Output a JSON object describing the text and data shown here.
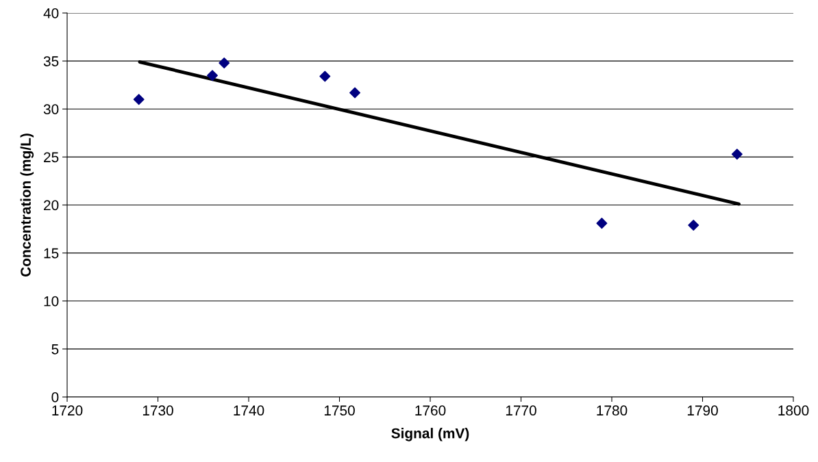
{
  "chart_data": {
    "type": "scatter",
    "xlabel": "Signal (mV)",
    "ylabel": "Concentration (mg/L)",
    "series": [
      {
        "color": "#000080",
        "marker": "diamond",
        "x": [
          1727.9,
          1736.0,
          1737.3,
          1748.4,
          1751.7,
          1778.9,
          1789.0,
          1793.8
        ],
        "values": [
          31.0,
          33.5,
          34.8,
          33.4,
          31.7,
          18.1,
          17.9,
          25.3
        ]
      },
      {
        "type": "line",
        "color": "#000000",
        "x": [
          1728,
          1794
        ],
        "values": [
          34.9,
          20.1
        ]
      }
    ],
    "xlim": [
      1720,
      1800
    ],
    "xticks": [
      1720,
      1730,
      1740,
      1750,
      1760,
      1770,
      1780,
      1790,
      1800
    ],
    "ylim": [
      0,
      40
    ],
    "yticks": [
      0,
      5,
      10,
      15,
      20,
      25,
      30,
      35,
      40
    ],
    "grid": "y",
    "legend": false
  }
}
